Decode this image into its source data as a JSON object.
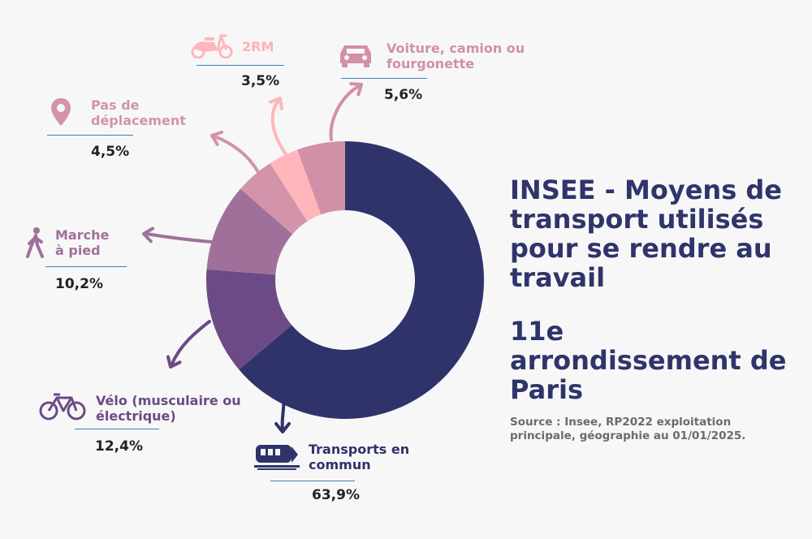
{
  "title": "INSEE - Moyens de transport utilisés pour se rendre au travail",
  "subtitle": "11e arrondissement de Paris",
  "source": "Source : Insee, RP2022 exploitation principale, géographie au 01/01/2025.",
  "colors": {
    "background": "#f7f7f8",
    "title": "#2f346a",
    "rule": "#3f7fb5"
  },
  "chart_data": {
    "type": "pie",
    "donut": true,
    "title": "INSEE - Moyens de transport utilisés pour se rendre au travail",
    "subtitle": "11e arrondissement de Paris",
    "series": [
      {
        "name": "Transports en commun",
        "value": 63.9,
        "label": "63,9%",
        "color": "#2f336a",
        "icon": "train-icon"
      },
      {
        "name": "Vélo (musculaire ou électrique)",
        "value": 12.4,
        "label": "12,4%",
        "color": "#6c4a85",
        "icon": "bicycle-icon"
      },
      {
        "name": "Marche à pied",
        "value": 10.2,
        "label": "10,2%",
        "color": "#a0709a",
        "icon": "walking-person-icon"
      },
      {
        "name": "Pas de déplacement",
        "value": 4.5,
        "label": "4,5%",
        "color": "#d293ab",
        "icon": "map-pin-icon"
      },
      {
        "name": "2RM",
        "value": 3.5,
        "label": "3,5%",
        "color": "#ffb6ba",
        "icon": "scooter-icon"
      },
      {
        "name": "Voiture, camion ou fourgonette",
        "value": 5.6,
        "label": "5,6%",
        "color": "#d28fa8",
        "icon": "car-icon"
      }
    ]
  }
}
